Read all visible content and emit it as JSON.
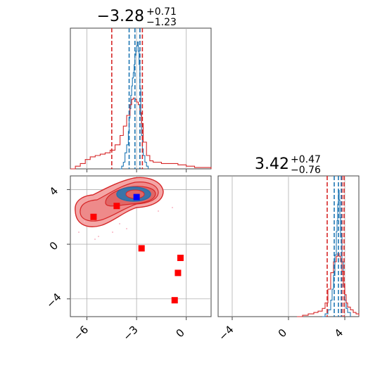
{
  "chart_data": [
    {
      "type": "line",
      "panel": "marginal-1",
      "title": {
        "value": "−3.28",
        "upper": "+0.71",
        "lower": "−1.23"
      },
      "xlim": [
        -7.0,
        1.5
      ],
      "x_ticks": [
        -6,
        -3,
        0
      ],
      "x_tick_labels": [],
      "grid": true,
      "quantile_lines_red": [
        -4.5,
        -2.8,
        -2.65
      ],
      "quantile_lines_blue": [
        -3.45,
        -3.1,
        -2.8
      ],
      "series": [
        {
          "color": "#1f77b4",
          "x": [
            -4.0,
            -3.9,
            -3.8,
            -3.7,
            -3.6,
            -3.5,
            -3.45,
            -3.4,
            -3.35,
            -3.3,
            -3.25,
            -3.2,
            -3.15,
            -3.1,
            -3.05,
            -3.0,
            -2.95,
            -2.9,
            -2.85,
            -2.8,
            -2.75,
            -2.7,
            -2.65,
            -2.6,
            -2.5,
            -2.4,
            -2.3
          ],
          "y": [
            0.0,
            0.02,
            0.05,
            0.12,
            0.18,
            0.28,
            0.38,
            0.45,
            0.55,
            0.62,
            0.68,
            0.72,
            0.78,
            0.85,
            0.88,
            0.92,
            0.95,
            0.88,
            0.78,
            0.6,
            0.4,
            0.25,
            0.15,
            0.1,
            0.05,
            0.02,
            0.0
          ]
        },
        {
          "color": "#d62728",
          "x": [
            -7.0,
            -6.7,
            -6.4,
            -6.1,
            -5.8,
            -5.5,
            -5.2,
            -4.9,
            -4.6,
            -4.3,
            -4.0,
            -3.8,
            -3.6,
            -3.4,
            -3.3,
            -3.2,
            -3.1,
            -3.0,
            -2.9,
            -2.8,
            -2.7,
            -2.6,
            -2.4,
            -2.2,
            -2.0,
            -1.5,
            -1.0,
            -0.5,
            0.0,
            0.5,
            1.0,
            1.5
          ],
          "y": [
            0.0,
            0.02,
            0.04,
            0.07,
            0.09,
            0.1,
            0.11,
            0.12,
            0.14,
            0.18,
            0.25,
            0.32,
            0.4,
            0.48,
            0.52,
            0.53,
            0.52,
            0.5,
            0.48,
            0.42,
            0.34,
            0.2,
            0.1,
            0.06,
            0.05,
            0.04,
            0.04,
            0.03,
            0.02,
            0.01,
            0.01,
            0.0
          ]
        }
      ]
    },
    {
      "type": "scatter",
      "panel": "joint",
      "xlim": [
        -7.0,
        1.5
      ],
      "ylim": [
        -5.3,
        5.0
      ],
      "x_ticks": [
        -6,
        -3,
        0
      ],
      "y_ticks": [
        -4,
        0,
        4
      ],
      "x_tick_labels": [
        "−6",
        "−3",
        "0"
      ],
      "y_tick_labels": [
        "−4",
        "0",
        "4"
      ],
      "grid": true,
      "red_square_points": [
        {
          "x": -5.6,
          "y": 2.0
        },
        {
          "x": -4.2,
          "y": 2.8
        },
        {
          "x": -2.7,
          "y": -0.3
        },
        {
          "x": -0.35,
          "y": -1.0
        },
        {
          "x": -0.5,
          "y": -2.1
        },
        {
          "x": -0.7,
          "y": -4.1
        }
      ],
      "blue_square_point": {
        "x": -3.0,
        "y": 3.45
      }
    },
    {
      "type": "line",
      "panel": "marginal-2",
      "title": {
        "value": "3.42",
        "upper": "+0.47",
        "lower": "−0.76"
      },
      "xlim": [
        -5.0,
        5.0
      ],
      "x_ticks": [
        -4,
        0,
        4
      ],
      "x_tick_labels": [
        "−4",
        "0",
        "4"
      ],
      "grid": true,
      "quantile_lines_red": [
        2.75,
        3.8,
        3.95
      ],
      "quantile_lines_blue": [
        3.25,
        3.55,
        3.75
      ],
      "series": [
        {
          "color": "#1f77b4",
          "x": [
            2.4,
            2.6,
            2.8,
            3.0,
            3.1,
            3.2,
            3.3,
            3.4,
            3.45,
            3.5,
            3.55,
            3.6,
            3.65,
            3.7,
            3.8,
            3.9,
            4.0,
            4.1,
            4.2,
            4.4
          ],
          "y": [
            0.0,
            0.02,
            0.05,
            0.12,
            0.2,
            0.3,
            0.45,
            0.62,
            0.7,
            0.82,
            0.92,
            0.85,
            0.72,
            0.58,
            0.4,
            0.22,
            0.12,
            0.06,
            0.03,
            0.0
          ]
        },
        {
          "color": "#d62728",
          "x": [
            0.6,
            1.0,
            1.4,
            1.8,
            2.1,
            2.4,
            2.6,
            2.8,
            3.0,
            3.2,
            3.4,
            3.5,
            3.6,
            3.7,
            3.8,
            3.9,
            4.0,
            4.1,
            4.2,
            4.4,
            4.6,
            4.8,
            5.0
          ],
          "y": [
            0.0,
            0.01,
            0.02,
            0.03,
            0.04,
            0.06,
            0.1,
            0.2,
            0.32,
            0.4,
            0.44,
            0.46,
            0.44,
            0.4,
            0.33,
            0.24,
            0.16,
            0.1,
            0.07,
            0.05,
            0.03,
            0.02,
            0.01
          ]
        }
      ]
    }
  ],
  "colors": {
    "blue": "#1f77b4",
    "red": "#d62728",
    "marker_red": "#ff0000",
    "marker_blue": "#0000ff",
    "grid": "#b0b0b0",
    "axis": "#444444"
  }
}
